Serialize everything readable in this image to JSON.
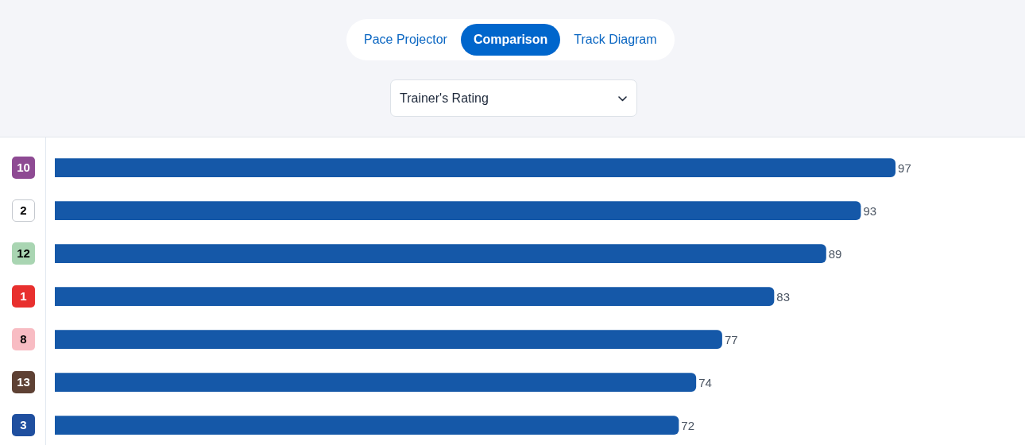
{
  "chart_data": {
    "type": "bar",
    "title": "Trainer's Rating",
    "annotations": [
      "Pace Projector",
      "Comparison",
      "Track Diagram"
    ],
    "orientation": "horizontal",
    "categories": [
      "10",
      "2",
      "12",
      "1",
      "8",
      "13",
      "3"
    ],
    "values": [
      97,
      93,
      89,
      83,
      77,
      74,
      72
    ],
    "color": "#1558a8",
    "data_labels": true,
    "tick_labels": "y"
  }
}
